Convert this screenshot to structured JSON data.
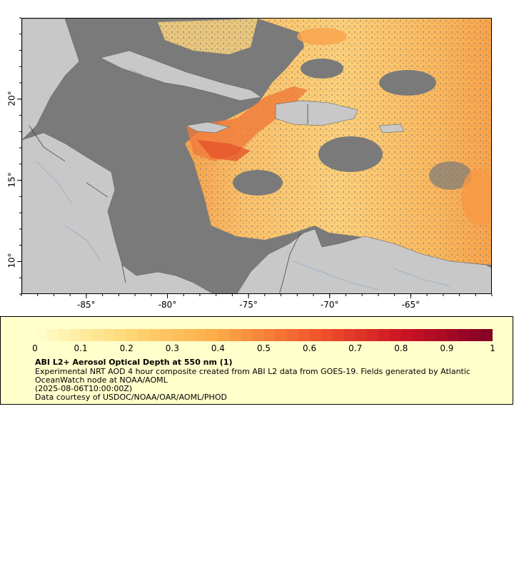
{
  "map": {
    "lon_range": [
      -89,
      -60
    ],
    "lat_range": [
      8,
      25
    ],
    "lon_ticks": [
      {
        "value": -85,
        "label": "-85°"
      },
      {
        "value": -80,
        "label": "-80°"
      },
      {
        "value": -75,
        "label": "-75°"
      },
      {
        "value": -70,
        "label": "-70°"
      },
      {
        "value": -65,
        "label": "-65°"
      }
    ],
    "lat_ticks": [
      {
        "value": 10,
        "label": "10°"
      },
      {
        "value": 15,
        "label": "15°"
      },
      {
        "value": 20,
        "label": "20°"
      }
    ],
    "colors": {
      "no_data": "#7a7a7a",
      "land": "#c8c8c8",
      "river": "#7aa0c8",
      "border": "#555555"
    }
  },
  "legend": {
    "background": "#ffffcc",
    "scale_ticks": [
      "0",
      "0.1",
      "0.2",
      "0.3",
      "0.4",
      "0.5",
      "0.6",
      "0.7",
      "0.8",
      "0.9",
      "1"
    ],
    "title": "ABI L2+ Aerosol Optical Depth at 550 nm (1)",
    "description": "Experimental NRT AOD 4 hour composite created from ABI L2 data from GOES-19. Fields generated by Atlantic OceanWatch node at NOAA/AOML",
    "timestamp": "(2025-08-06T10:00:00Z)",
    "credit": "Data courtesy of USDOC/NOAA/OAR/AOML/PHOD"
  }
}
